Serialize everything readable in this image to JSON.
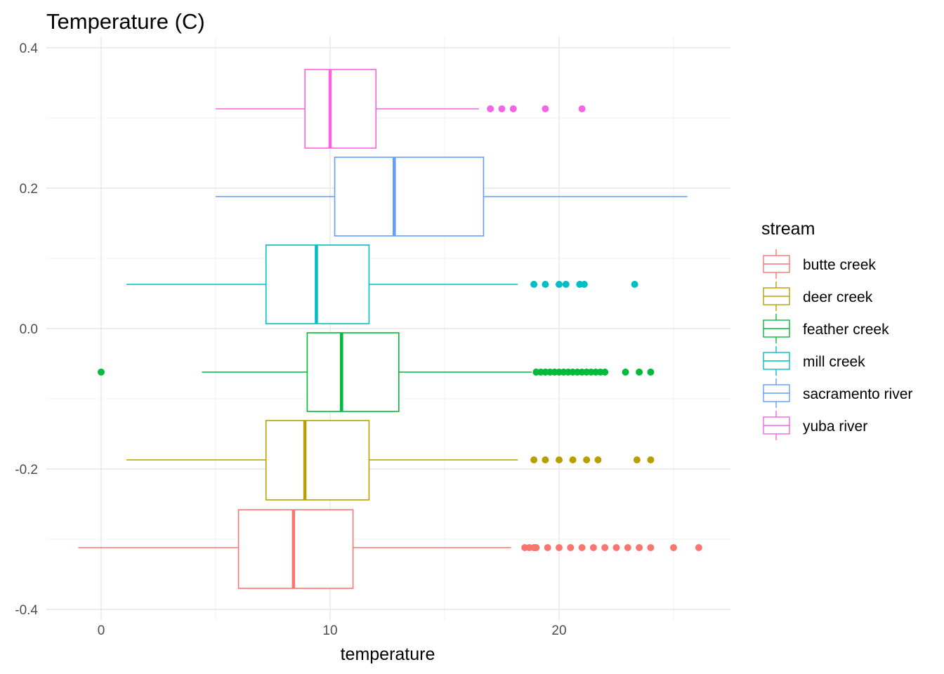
{
  "chart_data": {
    "type": "boxplot",
    "title": "Temperature (C)",
    "xlabel": "temperature",
    "ylabel": "",
    "xlim": [
      -2.2,
      27.5
    ],
    "ylim": [
      -0.4,
      0.4
    ],
    "x_ticks": [
      0,
      10,
      20
    ],
    "x_tick_labels": [
      "0",
      "10",
      "20"
    ],
    "y_ticks": [
      0.4,
      0.2,
      0.0,
      -0.2,
      -0.4
    ],
    "y_tick_labels": [
      "0.4",
      "0.2",
      "0.0",
      "-0.2",
      "-0.4"
    ],
    "orientation": "horizontal",
    "grid": true,
    "legend": {
      "title": "stream",
      "position": "right"
    },
    "series": [
      {
        "name": "butte creek",
        "color": "#F8766D",
        "ymin": -0.37,
        "ymax": -0.258,
        "ycenter": -0.312,
        "whisker_low": -1.0,
        "q1": 6.0,
        "median": 8.4,
        "q3": 11.0,
        "whisker_high": 17.9,
        "outliers": [
          18.5,
          18.7,
          18.9,
          19.0,
          19.5,
          20.0,
          20.5,
          21.0,
          21.5,
          22.0,
          22.5,
          23.0,
          23.5,
          24.0,
          25.0,
          26.1
        ]
      },
      {
        "name": "deer creek",
        "color": "#B79F00",
        "ymin": -0.244,
        "ymax": -0.131,
        "ycenter": -0.187,
        "whisker_low": 1.1,
        "q1": 7.2,
        "median": 8.9,
        "q3": 11.7,
        "whisker_high": 18.2,
        "outliers": [
          18.9,
          19.4,
          20.0,
          20.6,
          21.2,
          21.7,
          23.4,
          24.0
        ]
      },
      {
        "name": "feather creek",
        "color": "#00BA38",
        "ymin": -0.118,
        "ymax": -0.006,
        "ycenter": -0.062,
        "whisker_low": 4.4,
        "q1": 9.0,
        "median": 10.5,
        "q3": 13.0,
        "whisker_high": 18.8,
        "outliers": [
          0.0,
          19.0,
          19.2,
          19.4,
          19.6,
          19.8,
          20.0,
          20.2,
          20.4,
          20.6,
          20.8,
          21.0,
          21.2,
          21.4,
          21.6,
          21.8,
          22.0,
          22.9,
          23.5,
          24.0
        ]
      },
      {
        "name": "mill creek",
        "color": "#00BFC4",
        "ymin": 0.007,
        "ymax": 0.119,
        "ycenter": 0.063,
        "whisker_low": 1.1,
        "q1": 7.2,
        "median": 9.4,
        "q3": 11.7,
        "whisker_high": 18.2,
        "outliers": [
          18.9,
          19.4,
          20.0,
          20.3,
          20.9,
          21.1,
          23.3
        ]
      },
      {
        "name": "sacramento river",
        "color": "#619CFF",
        "ymin": 0.132,
        "ymax": 0.244,
        "ycenter": 0.188,
        "whisker_low": 5.0,
        "q1": 10.2,
        "median": 12.8,
        "q3": 16.7,
        "whisker_high": 25.6,
        "outliers": []
      },
      {
        "name": "yuba river",
        "color": "#F564E3",
        "ymin": 0.257,
        "ymax": 0.369,
        "ycenter": 0.313,
        "whisker_low": 5.0,
        "q1": 8.9,
        "median": 10.0,
        "q3": 12.0,
        "whisker_high": 16.5,
        "outliers": [
          17.0,
          17.5,
          18.0,
          19.4,
          21.0
        ]
      }
    ]
  }
}
